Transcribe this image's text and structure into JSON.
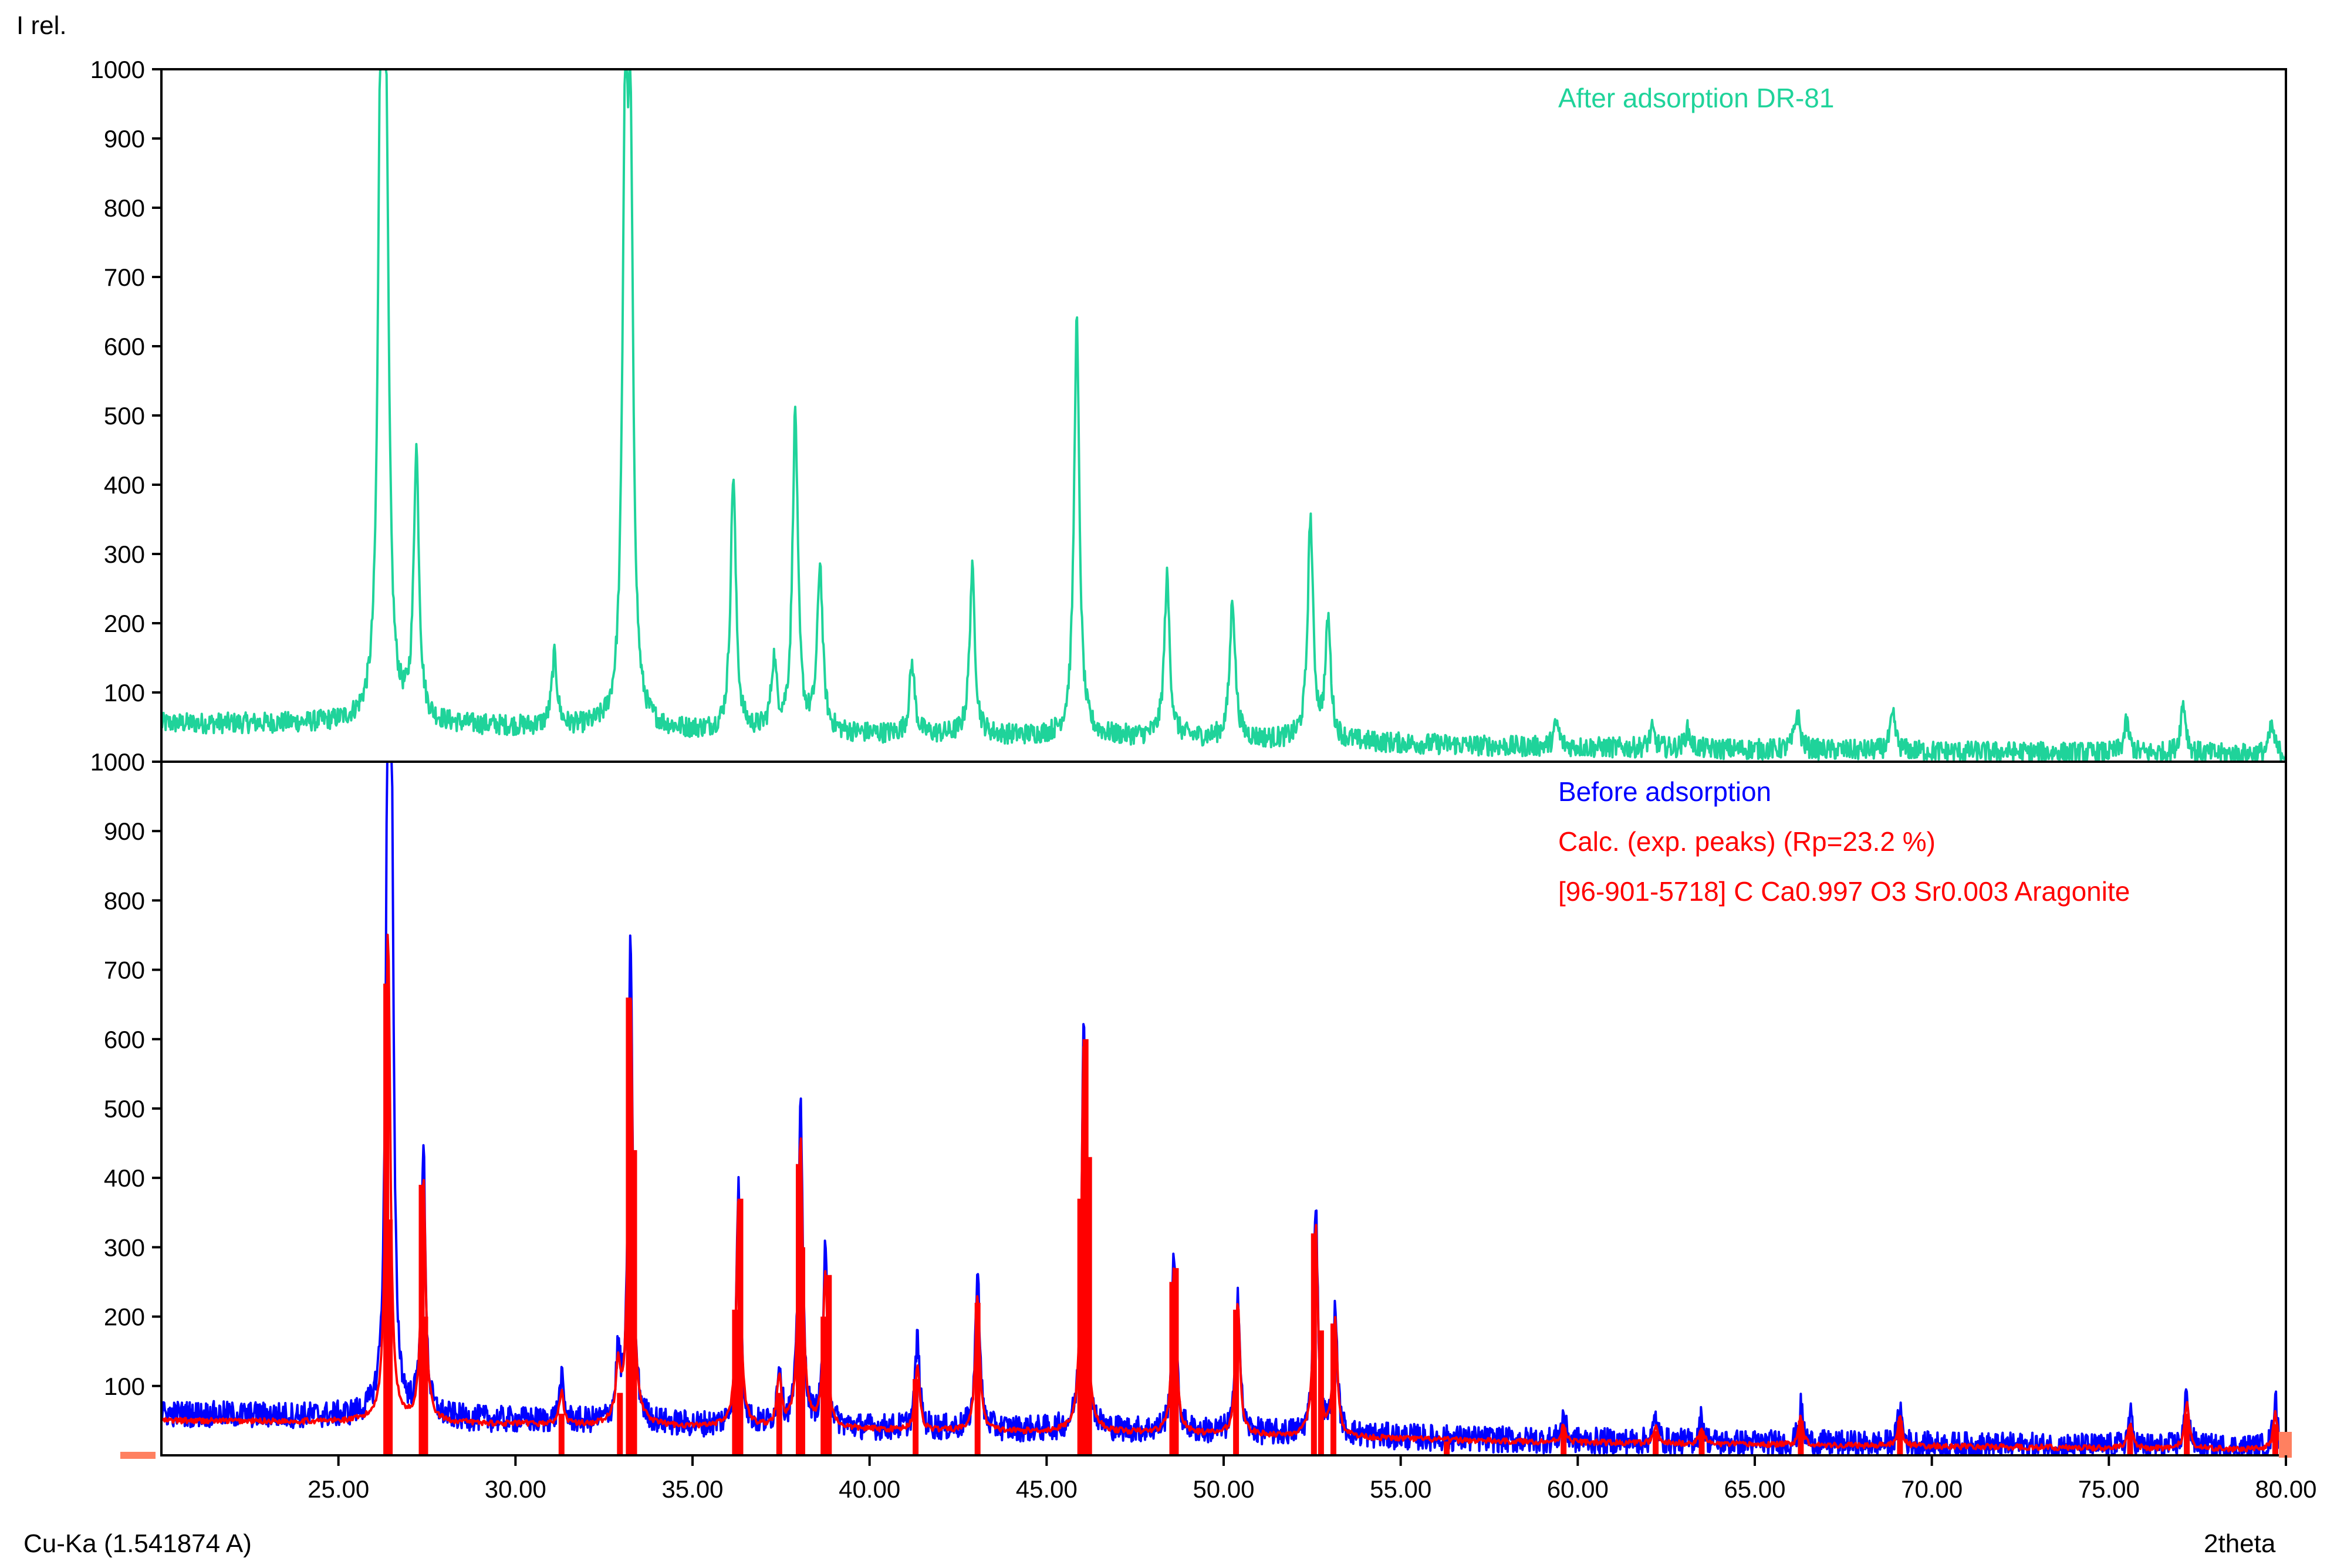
{
  "chart_data": {
    "type": "line",
    "ylabel": "I rel.",
    "xlabel": "2theta",
    "radiation_label": "Cu-Ka (1.541874 A)",
    "x_range": [
      20.0,
      80.0
    ],
    "x_ticks": [
      "25.00",
      "30.00",
      "35.00",
      "40.00",
      "45.00",
      "50.00",
      "55.00",
      "60.00",
      "65.00",
      "70.00",
      "75.00",
      "80.00"
    ],
    "y_range": [
      0,
      1000
    ],
    "y_ticks_top": [
      "1000",
      "900",
      "800",
      "700",
      "600",
      "500",
      "400",
      "300",
      "200",
      "100"
    ],
    "y_ticks_bottom": [
      "1000",
      "900",
      "800",
      "700",
      "600",
      "500",
      "400",
      "300",
      "200",
      "100"
    ],
    "grid": false,
    "legend_placement": "top-right of each panel",
    "panels": [
      {
        "name": "top",
        "legend": [
          "After adsorption DR-81"
        ],
        "series": [
          {
            "name": "After adsorption DR-81",
            "color": "#1fd39a",
            "baseline": [
              [
                20.0,
                55
              ],
              [
                26.0,
                55
              ],
              [
                30.0,
                50
              ],
              [
                36.0,
                42
              ],
              [
                42.0,
                38
              ],
              [
                48.0,
                35
              ],
              [
                54.0,
                28
              ],
              [
                58.0,
                22
              ],
              [
                64.0,
                18
              ],
              [
                70.0,
                15
              ],
              [
                76.0,
                12
              ],
              [
                80.0,
                10
              ]
            ],
            "peaks": [
              [
                26.2,
                1000
              ],
              [
                26.35,
                760
              ],
              [
                27.2,
                440
              ],
              [
                31.1,
                150
              ],
              [
                33.1,
                860
              ],
              [
                33.25,
                770
              ],
              [
                36.15,
                410
              ],
              [
                37.3,
                140
              ],
              [
                37.9,
                500
              ],
              [
                38.6,
                280
              ],
              [
                41.2,
                140
              ],
              [
                42.9,
                275
              ],
              [
                45.85,
                635
              ],
              [
                48.4,
                265
              ],
              [
                50.25,
                235
              ],
              [
                52.45,
                350
              ],
              [
                52.95,
                200
              ],
              [
                59.4,
                55
              ],
              [
                62.1,
                45
              ],
              [
                63.1,
                45
              ],
              [
                66.2,
                70
              ],
              [
                68.9,
                65
              ],
              [
                75.5,
                55
              ],
              [
                77.1,
                85
              ],
              [
                79.6,
                50
              ]
            ]
          }
        ]
      },
      {
        "name": "bottom",
        "legend": [
          "Before adsorption",
          "Calc. (exp. peaks) (Rp=23.2 %)",
          "[96-901-5718] C Ca0.997 O3 Sr0.003 Aragonite"
        ],
        "series": [
          {
            "name": "Before adsorption",
            "color": "#0000ff",
            "baseline": [
              [
                20.0,
                60
              ],
              [
                26.0,
                55
              ],
              [
                30.0,
                50
              ],
              [
                36.0,
                42
              ],
              [
                42.0,
                38
              ],
              [
                48.0,
                35
              ],
              [
                54.0,
                28
              ],
              [
                58.0,
                22
              ],
              [
                64.0,
                18
              ],
              [
                70.0,
                15
              ],
              [
                76.0,
                12
              ],
              [
                80.0,
                10
              ]
            ],
            "peaks": [
              [
                26.4,
                1000
              ],
              [
                26.5,
                760
              ],
              [
                27.4,
                435
              ],
              [
                31.3,
                110
              ],
              [
                32.9,
                140
              ],
              [
                33.25,
                745
              ],
              [
                36.3,
                390
              ],
              [
                37.45,
                130
              ],
              [
                38.05,
                515
              ],
              [
                38.75,
                290
              ],
              [
                41.35,
                170
              ],
              [
                43.05,
                275
              ],
              [
                46.05,
                640
              ],
              [
                48.6,
                295
              ],
              [
                50.4,
                235
              ],
              [
                52.6,
                365
              ],
              [
                53.15,
                210
              ],
              [
                59.6,
                60
              ],
              [
                62.2,
                55
              ],
              [
                63.5,
                55
              ],
              [
                66.3,
                70
              ],
              [
                69.1,
                70
              ],
              [
                75.6,
                60
              ],
              [
                77.2,
                95
              ],
              [
                79.7,
                80
              ]
            ]
          },
          {
            "name": "Calc. (exp. peaks) (Rp=23.2 %)",
            "color": "#ff0000",
            "baseline": [
              [
                20.0,
                50
              ],
              [
                26.0,
                48
              ],
              [
                30.0,
                45
              ],
              [
                36.0,
                40
              ],
              [
                42.0,
                35
              ],
              [
                48.0,
                32
              ],
              [
                54.0,
                25
              ],
              [
                58.0,
                20
              ],
              [
                64.0,
                16
              ],
              [
                70.0,
                13
              ],
              [
                76.0,
                10
              ],
              [
                80.0,
                8
              ]
            ],
            "peaks": [
              [
                26.4,
                760
              ],
              [
                27.4,
                400
              ],
              [
                31.3,
                90
              ],
              [
                32.9,
                120
              ],
              [
                33.25,
                660
              ],
              [
                36.3,
                370
              ],
              [
                37.45,
                110
              ],
              [
                38.05,
                460
              ],
              [
                38.75,
                260
              ],
              [
                41.35,
                130
              ],
              [
                43.05,
                230
              ],
              [
                46.05,
                600
              ],
              [
                48.6,
                270
              ],
              [
                50.4,
                220
              ],
              [
                52.6,
                330
              ],
              [
                53.15,
                190
              ],
              [
                59.6,
                45
              ],
              [
                62.2,
                40
              ],
              [
                63.5,
                40
              ],
              [
                66.3,
                55
              ],
              [
                69.1,
                55
              ],
              [
                75.6,
                45
              ],
              [
                77.2,
                75
              ],
              [
                79.7,
                60
              ]
            ]
          },
          {
            "name": "[96-901-5718] C Ca0.997 O3 Sr0.003 Aragonite",
            "type": "stick",
            "color": "#ff0000",
            "sticks": [
              [
                26.35,
                680
              ],
              [
                26.45,
                340
              ],
              [
                27.35,
                390
              ],
              [
                27.45,
                200
              ],
              [
                31.3,
                60
              ],
              [
                32.95,
                90
              ],
              [
                33.2,
                660
              ],
              [
                33.35,
                440
              ],
              [
                36.2,
                210
              ],
              [
                36.35,
                370
              ],
              [
                37.45,
                90
              ],
              [
                38.0,
                420
              ],
              [
                38.1,
                300
              ],
              [
                38.7,
                200
              ],
              [
                38.85,
                260
              ],
              [
                41.3,
                110
              ],
              [
                43.05,
                220
              ],
              [
                45.95,
                370
              ],
              [
                46.1,
                600
              ],
              [
                46.2,
                430
              ],
              [
                48.55,
                250
              ],
              [
                48.65,
                270
              ],
              [
                50.35,
                210
              ],
              [
                52.55,
                320
              ],
              [
                52.75,
                180
              ],
              [
                53.1,
                190
              ],
              [
                56.3,
                20
              ],
              [
                59.6,
                40
              ],
              [
                62.2,
                35
              ],
              [
                63.5,
                35
              ],
              [
                66.3,
                50
              ],
              [
                69.1,
                50
              ],
              [
                75.6,
                40
              ],
              [
                77.2,
                60
              ],
              [
                79.7,
                45
              ]
            ]
          }
        ]
      }
    ]
  },
  "colors": {
    "after_adsorption": "#1fd39a",
    "before_adsorption": "#0000ff",
    "calculated": "#ff0000",
    "reference_marker": "#ff0000",
    "axis": "#000000",
    "corner_marker": "#ff8060"
  }
}
